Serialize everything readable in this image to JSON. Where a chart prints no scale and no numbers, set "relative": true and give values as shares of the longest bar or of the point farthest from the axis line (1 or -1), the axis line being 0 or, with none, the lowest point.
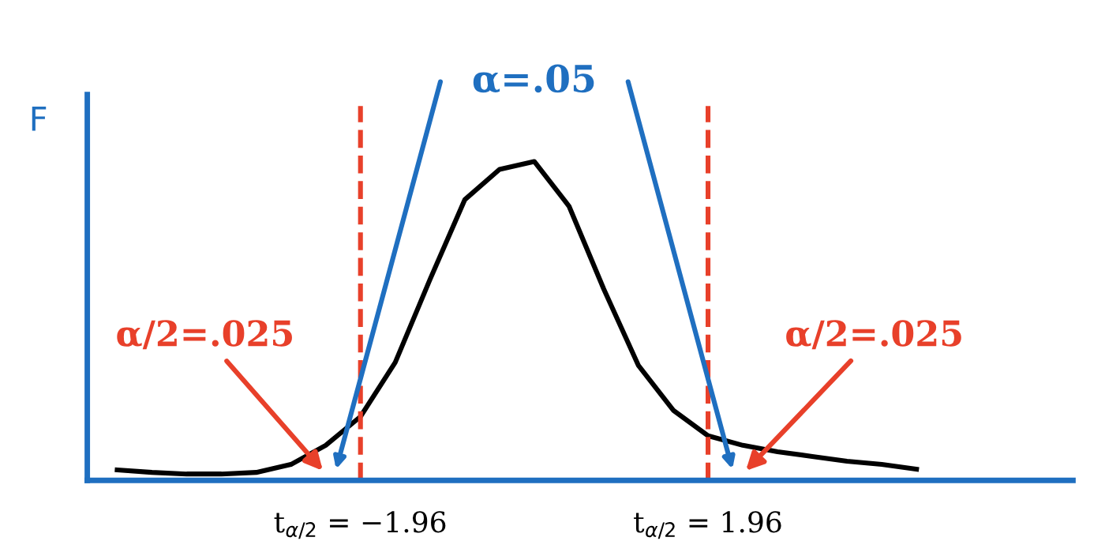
{
  "chart_data": {
    "type": "line",
    "relative": true,
    "ylabel": "F",
    "tick_labels": "x",
    "marker": "none",
    "line_style": "solid",
    "categories": [
      null,
      null,
      null,
      null,
      null,
      null,
      null,
      "t$_{α/2}$ = −1.96",
      null,
      null,
      null,
      null,
      null,
      null,
      null,
      null,
      null,
      "t$_{α/2}$ = 1.96",
      null,
      null,
      null,
      null,
      null,
      null
    ],
    "series": [
      {
        "color": "#000000",
        "values": [
          0.033,
          0.025,
          0.02,
          0.02,
          0.025,
          0.05,
          0.11,
          0.2,
          0.37,
          0.63,
          0.88,
          0.975,
          1.0,
          0.86,
          0.6,
          0.36,
          0.22,
          0.14,
          0.11,
          0.09,
          0.075,
          0.06,
          0.05,
          0.035
        ]
      }
    ],
    "ref_lines": [
      {
        "axis": "x",
        "value": "t$_{α/2}$ = −1.96",
        "color": "#e8402a",
        "line_style": "dashed"
      },
      {
        "axis": "x",
        "value": "t$_{α/2}$ = 1.96",
        "color": "#e8402a",
        "line_style": "dashed"
      }
    ],
    "annotations": [
      "α=.05",
      "α/2=.025",
      "α/2=.025"
    ]
  }
}
